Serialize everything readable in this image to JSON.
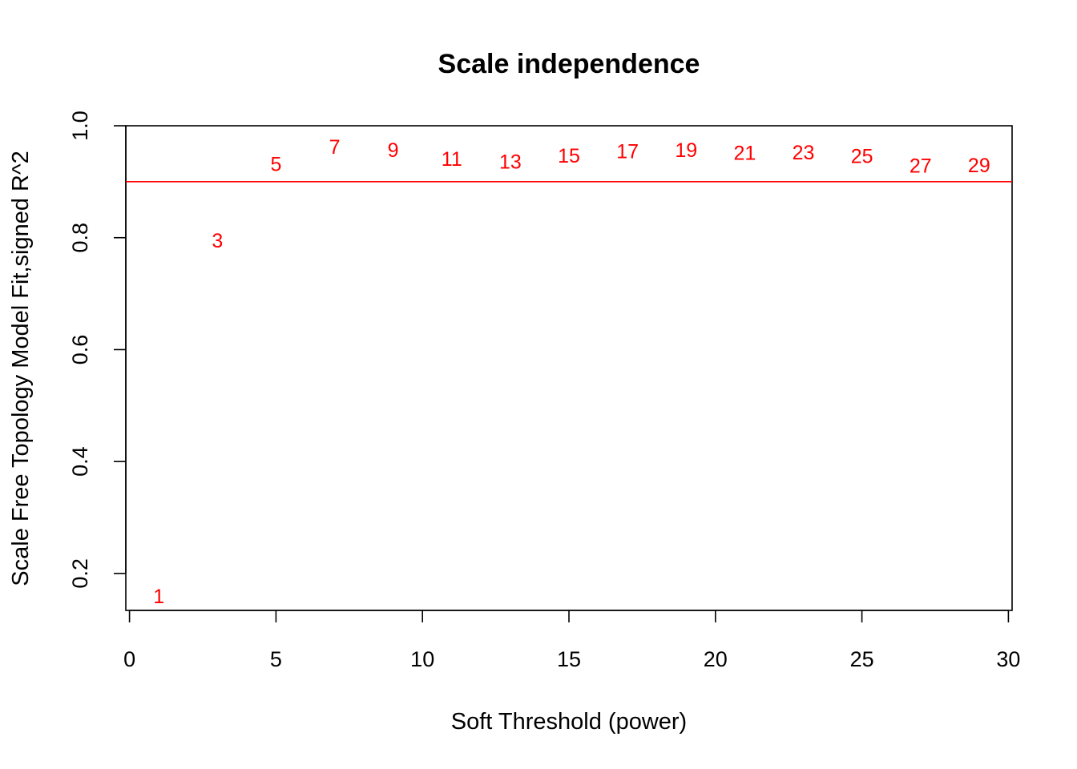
{
  "chart_data": {
    "type": "scatter",
    "title": "Scale independence",
    "xlabel": "Soft Threshold (power)",
    "ylabel": "Scale Free Topology Model Fit,signed R^2",
    "xlim": [
      0,
      30
    ],
    "ylim": [
      0.134,
      1.0
    ],
    "xticks": [
      0,
      5,
      10,
      15,
      20,
      25,
      30
    ],
    "yticks": [
      0.2,
      0.4,
      0.6,
      0.8,
      1.0
    ],
    "xtick_labels": [
      "0",
      "5",
      "10",
      "15",
      "20",
      "25",
      "30"
    ],
    "ytick_labels": [
      "0.2",
      "0.4",
      "0.6",
      "0.8",
      "1.0"
    ],
    "grid": false,
    "marker": "text labels showing power value",
    "point_color": "#ff0000",
    "reference_line": {
      "orientation": "horizontal",
      "y": 0.9,
      "color": "#ff0000"
    },
    "points": [
      {
        "x": 1,
        "y": 0.16,
        "label": "1"
      },
      {
        "x": 3,
        "y": 0.795,
        "label": "3"
      },
      {
        "x": 5,
        "y": 0.932,
        "label": "5"
      },
      {
        "x": 7,
        "y": 0.963,
        "label": "7"
      },
      {
        "x": 9,
        "y": 0.957,
        "label": "9"
      },
      {
        "x": 11,
        "y": 0.941,
        "label": "11"
      },
      {
        "x": 13,
        "y": 0.936,
        "label": "13"
      },
      {
        "x": 15,
        "y": 0.947,
        "label": "15"
      },
      {
        "x": 17,
        "y": 0.955,
        "label": "17"
      },
      {
        "x": 19,
        "y": 0.957,
        "label": "19"
      },
      {
        "x": 21,
        "y": 0.952,
        "label": "21"
      },
      {
        "x": 23,
        "y": 0.953,
        "label": "23"
      },
      {
        "x": 25,
        "y": 0.946,
        "label": "25"
      },
      {
        "x": 27,
        "y": 0.929,
        "label": "27"
      },
      {
        "x": 29,
        "y": 0.93,
        "label": "29"
      }
    ]
  }
}
